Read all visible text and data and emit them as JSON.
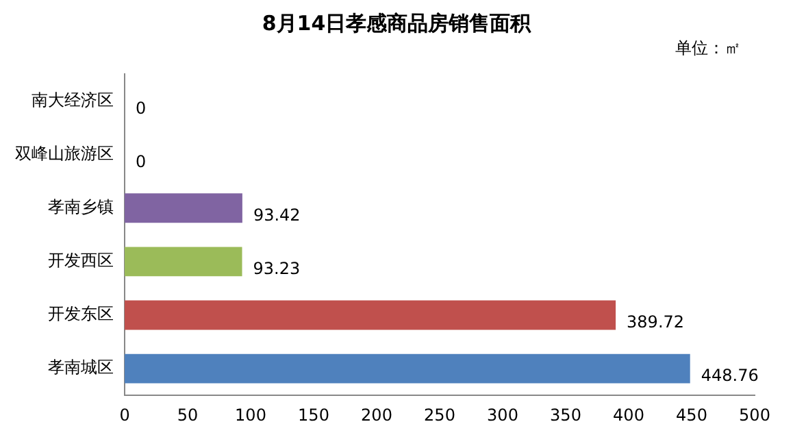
{
  "chart_data": {
    "type": "bar",
    "orientation": "horizontal",
    "title": "8月14日孝感商品房销售面积",
    "annotations": [
      "单位：㎡"
    ],
    "categories": [
      "南大经济区",
      "双峰山旅游区",
      "孝南乡镇",
      "开发西区",
      "开发东区",
      "孝南城区"
    ],
    "values": [
      0,
      0,
      93.42,
      93.23,
      389.72,
      448.76
    ],
    "colors": [
      "#8064a2",
      "#8064a2",
      "#8064a2",
      "#9bbb59",
      "#c0504d",
      "#4f81bd"
    ],
    "xlim": [
      0,
      500
    ],
    "xticks": [
      0,
      50,
      100,
      150,
      200,
      250,
      300,
      350,
      400,
      450,
      500
    ],
    "grid": false,
    "data_labels": true,
    "legend": false
  }
}
